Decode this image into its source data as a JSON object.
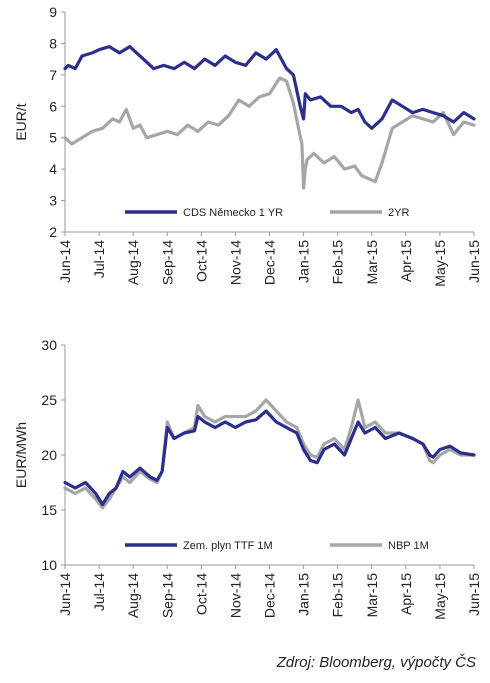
{
  "source_note": "Zdroj: Bloomberg, výpočty ČS",
  "chart_data": [
    {
      "type": "line",
      "ylabel": "EUR/t",
      "ylim": [
        2,
        9
      ],
      "yticks": [
        2,
        3,
        4,
        5,
        6,
        7,
        8,
        9
      ],
      "xtick_labels": [
        "Jun-14",
        "Jul-14",
        "Aug-14",
        "Sep-14",
        "Oct-14",
        "Nov-14",
        "Dec-14",
        "Jan-15",
        "Feb-15",
        "Mar-15",
        "Apr-15",
        "May-15",
        "Jun-15"
      ],
      "grid": false,
      "legend_position": "bottom-inside",
      "series": [
        {
          "name": "CDS Německo 1 YR",
          "color": "#2b2e8c",
          "x": [
            0,
            0.1,
            0.3,
            0.5,
            0.8,
            1.0,
            1.3,
            1.6,
            1.9,
            2.1,
            2.3,
            2.6,
            2.9,
            3.2,
            3.5,
            3.8,
            4.1,
            4.4,
            4.7,
            5.0,
            5.3,
            5.6,
            5.9,
            6.2,
            6.5,
            6.7,
            6.8,
            6.9,
            7.0,
            7.05,
            7.2,
            7.5,
            7.8,
            8.1,
            8.4,
            8.6,
            8.8,
            9.0,
            9.3,
            9.6,
            9.9,
            10.2,
            10.5,
            10.8,
            11.1,
            11.4,
            11.7,
            12.0
          ],
          "values": [
            7.2,
            7.3,
            7.2,
            7.6,
            7.7,
            7.8,
            7.9,
            7.7,
            7.9,
            7.7,
            7.5,
            7.2,
            7.3,
            7.2,
            7.4,
            7.2,
            7.5,
            7.3,
            7.6,
            7.4,
            7.3,
            7.7,
            7.5,
            7.8,
            7.2,
            7.0,
            6.5,
            6.0,
            5.6,
            6.4,
            6.2,
            6.3,
            6.0,
            6.0,
            5.8,
            5.9,
            5.5,
            5.3,
            5.6,
            6.2,
            6.0,
            5.8,
            5.9,
            5.8,
            5.7,
            5.5,
            5.8,
            5.6
          ]
        },
        {
          "name": "2YR",
          "color": "#a6a6a6",
          "x": [
            0,
            0.2,
            0.5,
            0.8,
            1.1,
            1.4,
            1.6,
            1.8,
            2.0,
            2.2,
            2.4,
            2.7,
            3.0,
            3.3,
            3.6,
            3.9,
            4.2,
            4.5,
            4.8,
            5.1,
            5.4,
            5.7,
            6.0,
            6.3,
            6.5,
            6.7,
            6.85,
            6.95,
            7.0,
            7.05,
            7.1,
            7.3,
            7.6,
            7.9,
            8.2,
            8.5,
            8.7,
            8.9,
            9.1,
            9.3,
            9.6,
            9.9,
            10.2,
            10.5,
            10.8,
            11.1,
            11.4,
            11.7,
            12.0
          ],
          "values": [
            5.0,
            4.8,
            5.0,
            5.2,
            5.3,
            5.6,
            5.5,
            5.9,
            5.3,
            5.4,
            5.0,
            5.1,
            5.2,
            5.1,
            5.4,
            5.2,
            5.5,
            5.4,
            5.7,
            6.2,
            6.0,
            6.3,
            6.4,
            6.9,
            6.8,
            6.1,
            5.3,
            4.8,
            3.4,
            4.0,
            4.3,
            4.5,
            4.2,
            4.4,
            4.0,
            4.1,
            3.8,
            3.7,
            3.6,
            4.2,
            5.3,
            5.5,
            5.7,
            5.6,
            5.5,
            5.8,
            5.1,
            5.5,
            5.4
          ]
        }
      ]
    },
    {
      "type": "line",
      "ylabel": "EUR/MWh",
      "ylim": [
        10,
        30
      ],
      "yticks": [
        10,
        15,
        20,
        25,
        30
      ],
      "xtick_labels": [
        "Jun-14",
        "Jul-14",
        "Aug-14",
        "Sep-14",
        "Oct-14",
        "Nov-14",
        "Dec-14",
        "Jan-15",
        "Feb-15",
        "Mar-15",
        "Apr-15",
        "May-15",
        "Jun-15"
      ],
      "grid": false,
      "legend_position": "bottom-inside",
      "series": [
        {
          "name": "Zem. plyn TTF 1M",
          "color": "#2b2e8c",
          "x": [
            0,
            0.3,
            0.6,
            0.9,
            1.1,
            1.3,
            1.5,
            1.7,
            1.9,
            2.2,
            2.5,
            2.7,
            2.85,
            3.0,
            3.2,
            3.5,
            3.8,
            3.9,
            4.1,
            4.4,
            4.7,
            5.0,
            5.3,
            5.6,
            5.9,
            6.2,
            6.5,
            6.8,
            7.0,
            7.2,
            7.4,
            7.6,
            7.9,
            8.2,
            8.4,
            8.6,
            8.8,
            9.1,
            9.4,
            9.8,
            10.2,
            10.5,
            10.7,
            10.8,
            11.0,
            11.3,
            11.6,
            12.0
          ],
          "values": [
            17.5,
            17.0,
            17.5,
            16.5,
            15.5,
            16.5,
            17.0,
            18.5,
            18.0,
            18.8,
            18.0,
            17.7,
            18.5,
            22.5,
            21.5,
            22.0,
            22.2,
            23.5,
            23.0,
            22.5,
            23.0,
            22.5,
            23.0,
            23.2,
            24.0,
            23.0,
            22.5,
            22.0,
            20.5,
            19.5,
            19.3,
            20.5,
            21.0,
            20.0,
            21.5,
            23.0,
            22.0,
            22.5,
            21.5,
            22.0,
            21.5,
            21.0,
            20.0,
            19.8,
            20.5,
            20.8,
            20.2,
            20.0
          ]
        },
        {
          "name": "NBP 1M",
          "color": "#a6a6a6",
          "x": [
            0,
            0.3,
            0.6,
            0.9,
            1.1,
            1.3,
            1.5,
            1.7,
            1.9,
            2.2,
            2.5,
            2.7,
            2.85,
            3.0,
            3.2,
            3.5,
            3.8,
            3.9,
            4.1,
            4.4,
            4.7,
            5.0,
            5.3,
            5.6,
            5.9,
            6.2,
            6.5,
            6.8,
            7.0,
            7.2,
            7.4,
            7.6,
            7.9,
            8.2,
            8.4,
            8.6,
            8.8,
            9.1,
            9.4,
            9.8,
            10.2,
            10.5,
            10.7,
            10.8,
            11.0,
            11.3,
            11.6,
            12.0
          ],
          "values": [
            17.0,
            16.5,
            17.0,
            16.0,
            15.2,
            16.0,
            17.0,
            18.0,
            17.5,
            18.5,
            17.8,
            17.5,
            18.5,
            23.0,
            21.5,
            22.0,
            22.5,
            24.5,
            23.5,
            23.0,
            23.5,
            23.5,
            23.5,
            24.0,
            25.0,
            24.0,
            23.0,
            22.5,
            21.0,
            20.0,
            19.8,
            21.0,
            21.5,
            20.5,
            22.5,
            25.0,
            22.5,
            23.0,
            22.0,
            22.0,
            21.5,
            21.0,
            19.5,
            19.3,
            20.0,
            20.5,
            20.0,
            20.0
          ]
        }
      ]
    }
  ]
}
